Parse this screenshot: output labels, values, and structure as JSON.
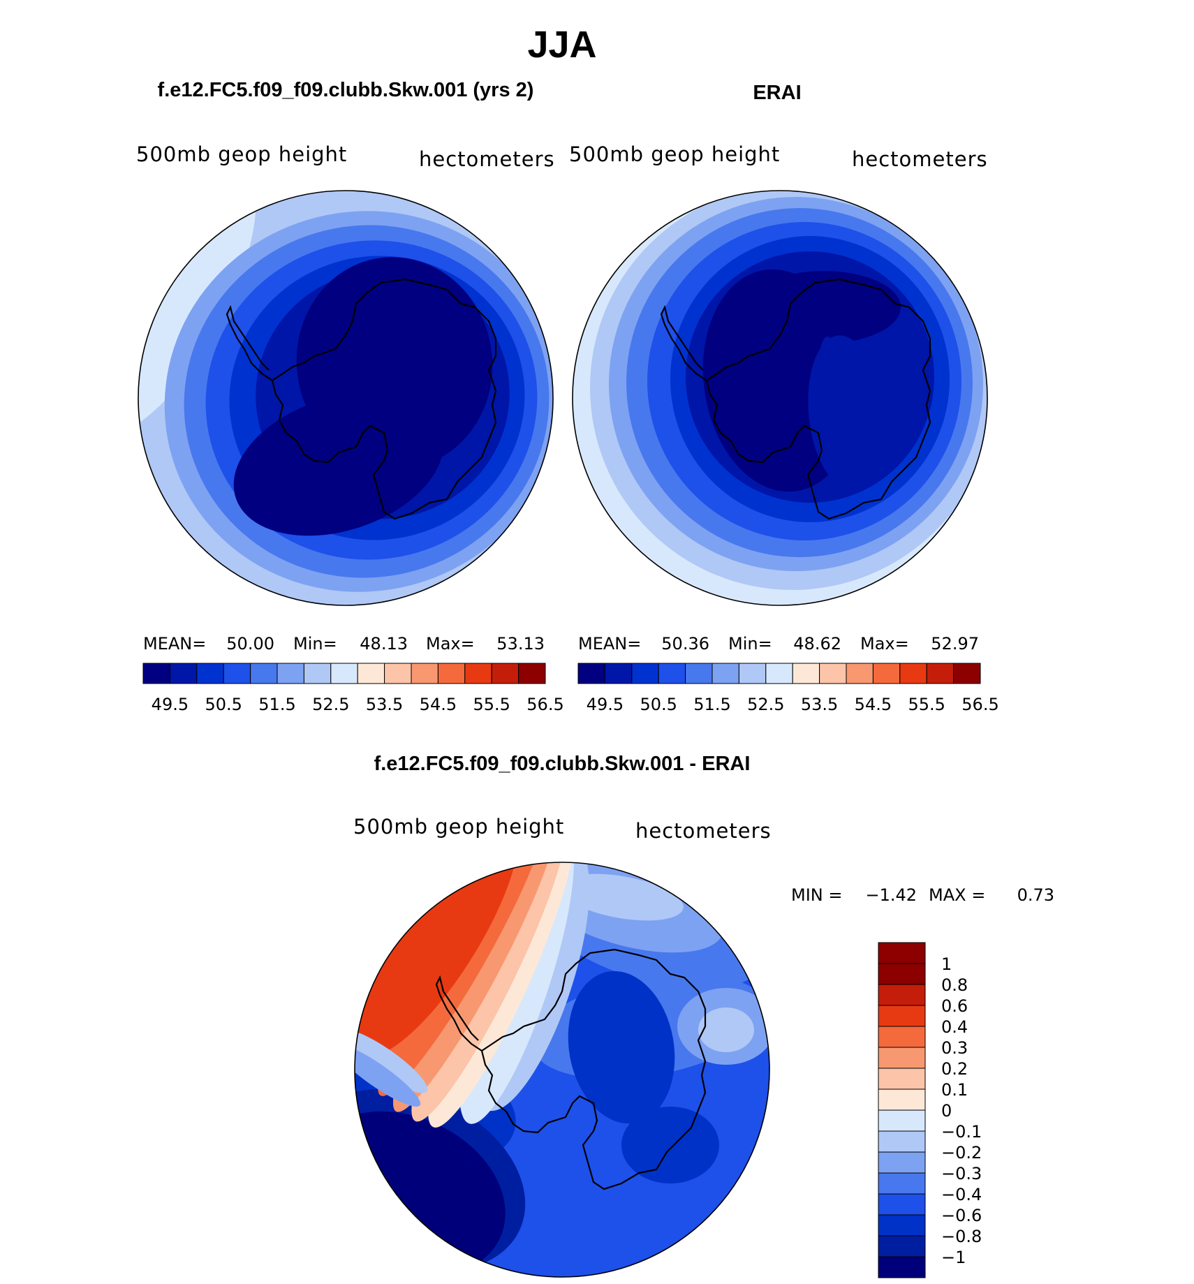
{
  "figure": {
    "season": "JJA",
    "colors": {
      "abs_scale": [
        "#000080",
        "#0016a8",
        "#0032d0",
        "#1e50ea",
        "#4878ee",
        "#7ea2f2",
        "#b0c8f6",
        "#d8e8fc",
        "#fde8d8",
        "#fcc4a8",
        "#f89870",
        "#f46a3c",
        "#e83a12",
        "#c41e0a",
        "#8c0000"
      ],
      "diff_scale": [
        "#00007a",
        "#001ea0",
        "#0032c8",
        "#1e50ea",
        "#4878ee",
        "#7ea2f2",
        "#b0c8f6",
        "#d8e8fc",
        "#fde8d8",
        "#fcc4a8",
        "#f89870",
        "#f46a3c",
        "#e83a12",
        "#c41e0a",
        "#8c0000"
      ],
      "coast": "#000000"
    }
  },
  "chart_data": [
    {
      "type": "heatmap",
      "projection": "south-polar-stereographic",
      "title": "f.e12.FC5.f09_f09.clubb.Skw.001 (yrs 2)",
      "left_label": "500mb  geop  height",
      "right_label": "hectometers",
      "stats": {
        "mean_label": "MEAN=",
        "mean": "50.00",
        "min_label": "Min=",
        "min": "48.13",
        "max_label": "Max=",
        "max": "53.13"
      },
      "levels": [
        "49.5",
        "50",
        "50.5",
        "51",
        "51.5",
        "52",
        "52.5",
        "53",
        "53.5",
        "54",
        "54.5",
        "55",
        "55.5",
        "56",
        "56.5"
      ],
      "tick_labels": [
        "49.5",
        "50.5",
        "51.5",
        "52.5",
        "53.5",
        "54.5",
        "55.5",
        "56.5"
      ]
    },
    {
      "type": "heatmap",
      "projection": "south-polar-stereographic",
      "title": "ERAI",
      "left_label": "500mb  geop  height",
      "right_label": "hectometers",
      "stats": {
        "mean_label": "MEAN=",
        "mean": "50.36",
        "min_label": "Min=",
        "min": "48.62",
        "max_label": "Max=",
        "max": "52.97"
      },
      "levels": [
        "49.5",
        "50",
        "50.5",
        "51",
        "51.5",
        "52",
        "52.5",
        "53",
        "53.5",
        "54",
        "54.5",
        "55",
        "55.5",
        "56",
        "56.5"
      ],
      "tick_labels": [
        "49.5",
        "50.5",
        "51.5",
        "52.5",
        "53.5",
        "54.5",
        "55.5",
        "56.5"
      ]
    },
    {
      "type": "heatmap",
      "projection": "south-polar-stereographic",
      "title": "f.e12.FC5.f09_f09.clubb.Skw.001 - ERAI",
      "left_label": "500mb  geop  height",
      "right_label": "hectometers",
      "stats": {
        "min_label": "MIN =",
        "min": "−1.42",
        "max_label": "MAX =",
        "max": "0.73"
      },
      "levels": [
        "−1",
        "−0.8",
        "−0.6",
        "−0.4",
        "−0.3",
        "−0.2",
        "−0.1",
        "0",
        "0.1",
        "0.2",
        "0.3",
        "0.4",
        "0.6",
        "0.8",
        "1"
      ]
    }
  ]
}
